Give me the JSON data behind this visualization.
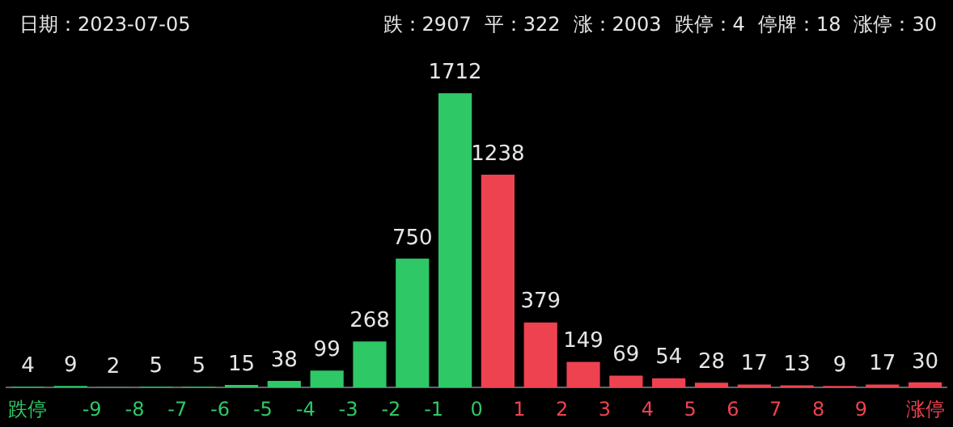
{
  "chart_data": {
    "type": "bar",
    "title": "日期：2023-07-05",
    "annotations": [
      "跌：2907",
      "平：322",
      "涨：2003",
      "跌停：4",
      "停牌：18",
      "涨停：30"
    ],
    "x": [
      -10.5,
      -9.5,
      -8.5,
      -7.5,
      -6.5,
      -5.5,
      -4.5,
      -3.5,
      -2.5,
      -1.5,
      -0.5,
      0.5,
      1.5,
      2.5,
      3.5,
      4.5,
      5.5,
      6.5,
      7.5,
      8.5,
      9.5,
      10.5
    ],
    "values": [
      4,
      9,
      2,
      5,
      5,
      15,
      38,
      99,
      268,
      750,
      1712,
      1238,
      379,
      149,
      69,
      54,
      28,
      17,
      13,
      9,
      17,
      30
    ],
    "colors": [
      "#2ec866",
      "#2ec866",
      "#2ec866",
      "#2ec866",
      "#2ec866",
      "#2ec866",
      "#2ec866",
      "#2ec866",
      "#2ec866",
      "#2ec866",
      "#2ec866",
      "#ef4250",
      "#ef4250",
      "#ef4250",
      "#ef4250",
      "#ef4250",
      "#ef4250",
      "#ef4250",
      "#ef4250",
      "#ef4250",
      "#ef4250",
      "#ef4250"
    ],
    "xlim": [
      -11,
      11
    ],
    "xticks": [
      {
        "value": -10.5,
        "label": "跌停"
      },
      -9,
      -8,
      -7,
      -6,
      -5,
      -4,
      -3,
      -2,
      -1,
      0,
      1,
      2,
      3,
      4,
      5,
      6,
      7,
      8,
      9,
      {
        "value": 10.5,
        "label": "涨停"
      }
    ],
    "data_labels": true,
    "grid": false,
    "legend": false
  }
}
